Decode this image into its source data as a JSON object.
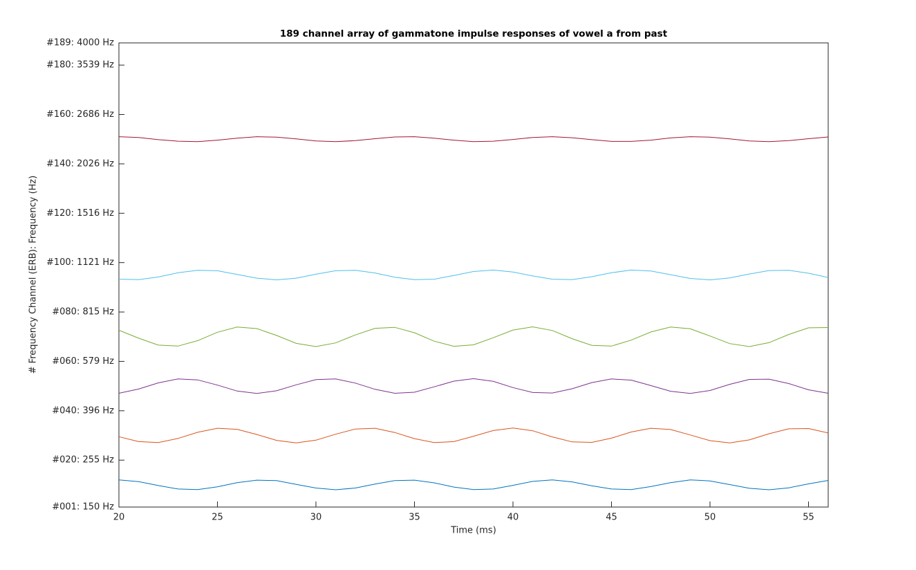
{
  "chart_data": {
    "type": "line",
    "title": "189 channel array of gammatone impulse responses of vowel a from past",
    "x_label": "Time (ms)",
    "y_label": "# Frequency Channel (ERB): Frequency (Hz)",
    "xlim": [
      20,
      56
    ],
    "xticks": [
      20,
      25,
      30,
      35,
      40,
      45,
      50,
      55
    ],
    "ylim": [
      1,
      189
    ],
    "yticks": [
      {
        "value": 1,
        "label": "#001:  150 Hz"
      },
      {
        "value": 20,
        "label": "#020:  255 Hz"
      },
      {
        "value": 40,
        "label": "#040:  396 Hz"
      },
      {
        "value": 60,
        "label": "#060:  579 Hz"
      },
      {
        "value": 80,
        "label": "#080:  815 Hz"
      },
      {
        "value": 100,
        "label": "#100: 1121 Hz"
      },
      {
        "value": 120,
        "label": "#120: 1516 Hz"
      },
      {
        "value": 140,
        "label": "#140: 2026 Hz"
      },
      {
        "value": 160,
        "label": "#160: 2686 Hz"
      },
      {
        "value": 180,
        "label": "#180: 3539 Hz"
      },
      {
        "value": 189,
        "label": "#189: 4000 Hz"
      }
    ],
    "x": [
      20,
      21,
      22,
      23,
      24,
      25,
      26,
      27,
      28,
      29,
      30,
      31,
      32,
      33,
      34,
      35,
      36,
      37,
      38,
      39,
      40,
      41,
      42,
      43,
      44,
      45,
      46,
      47,
      48,
      49,
      50,
      51,
      52,
      53,
      54,
      55,
      56
    ],
    "series": [
      {
        "color": "#0072bd",
        "values": [
          12,
          11.3,
          9.7,
          8.3,
          8.1,
          9.2,
          10.9,
          11.9,
          11.7,
          10.2,
          8.7,
          8,
          8.7,
          10.3,
          11.7,
          11.9,
          10.8,
          9.1,
          8.1,
          8.3,
          9.8,
          11.4,
          12,
          11.2,
          9.6,
          8.3,
          8.1,
          9.3,
          10.9,
          12,
          11.6,
          10.1,
          8.6,
          8,
          8.8,
          10.4,
          11.8
        ]
      },
      {
        "color": "#d95319",
        "values": [
          29.5,
          27.5,
          27.1,
          28.8,
          31.3,
          32.9,
          32.5,
          30.4,
          28,
          27,
          28.1,
          30.5,
          32.6,
          32.9,
          31.2,
          28.7,
          27.1,
          27.5,
          29.7,
          32,
          33,
          31.9,
          29.4,
          27.4,
          27.2,
          28.9,
          31.4,
          32.9,
          32.4,
          30.2,
          27.9,
          27,
          28.2,
          30.7,
          32.7,
          32.8,
          31
        ]
      },
      {
        "color": "#7e2f8e",
        "values": [
          47.1,
          48.8,
          51.3,
          52.9,
          52.5,
          50.4,
          48,
          47,
          48.1,
          50.5,
          52.6,
          52.9,
          51.2,
          48.7,
          47.1,
          47.5,
          49.7,
          52,
          53,
          51.9,
          49.4,
          47.4,
          47.2,
          48.9,
          51.4,
          52.9,
          52.4,
          50.2,
          47.9,
          47,
          48.2,
          50.7,
          52.7,
          52.8,
          51,
          48.5,
          47.1
        ]
      },
      {
        "color": "#77ac30",
        "values": [
          72.6,
          69.4,
          66.6,
          66.2,
          68.4,
          71.8,
          73.9,
          73.3,
          70.5,
          67.3,
          66,
          67.5,
          70.7,
          73.4,
          73.8,
          71.6,
          68.2,
          66.1,
          66.7,
          69.6,
          72.7,
          74,
          72.5,
          69.2,
          66.5,
          66.2,
          68.6,
          71.9,
          73.9,
          73.2,
          70.3,
          67.2,
          66,
          67.6,
          70.9,
          73.6,
          73.7
        ]
      },
      {
        "color": "#4dbeee",
        "values": [
          93.3,
          93.1,
          94.2,
          95.9,
          96.9,
          96.7,
          95.2,
          93.7,
          93,
          93.7,
          95.3,
          96.7,
          96.9,
          95.8,
          94.1,
          93.1,
          93.3,
          94.8,
          96.4,
          97,
          96.2,
          94.6,
          93.3,
          93.1,
          94.3,
          95.9,
          97,
          96.6,
          95.1,
          93.6,
          93,
          93.8,
          95.4,
          96.8,
          96.9,
          95.7,
          94
        ]
      },
      {
        "color": "#a2142f",
        "values": [
          151,
          150.7,
          149.8,
          149.2,
          149,
          149.6,
          150.4,
          151,
          150.8,
          150.1,
          149.3,
          149,
          149.4,
          150.2,
          150.9,
          151,
          150.4,
          149.6,
          149,
          149.2,
          149.9,
          150.7,
          151,
          150.6,
          149.8,
          149.1,
          149.1,
          149.6,
          150.5,
          151,
          150.8,
          150.1,
          149.3,
          149,
          149.4,
          150.2,
          150.9
        ]
      }
    ]
  }
}
